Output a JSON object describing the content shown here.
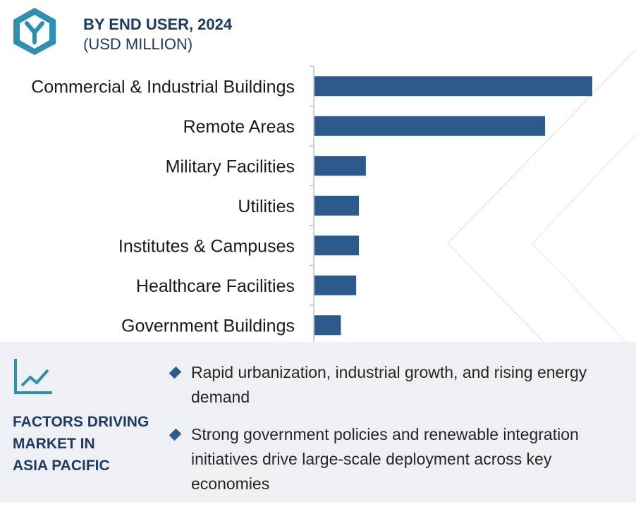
{
  "header": {
    "title": "BY END USER, 2024",
    "subtitle": "(USD MILLION)"
  },
  "colors": {
    "bar": "#2c5a8c",
    "header_text": "#1f3b63",
    "accent": "#2f8fb0",
    "panel": "#eef0f4"
  },
  "chart_data": {
    "type": "bar",
    "orientation": "horizontal",
    "categories": [
      "Commercial & Industrial Buildings",
      "Remote Areas",
      "Military Facilities",
      "Utilities",
      "Institutes & Campuses",
      "Healthcare Facilities",
      "Government Buildings"
    ],
    "values": [
      100,
      83,
      18.5,
      16,
      16,
      15,
      9.5
    ],
    "xlim": [
      0,
      100
    ],
    "grid": false
  },
  "factors": {
    "icon": "trend-line-icon",
    "heading_lines": [
      "FACTORS DRIVING",
      "MARKET IN",
      "ASIA PACIFIC"
    ],
    "items": [
      "Rapid urbanization, industrial growth, and rising energy demand",
      "Strong government policies and renewable integration initiatives drive large-scale deployment across key economies"
    ]
  }
}
